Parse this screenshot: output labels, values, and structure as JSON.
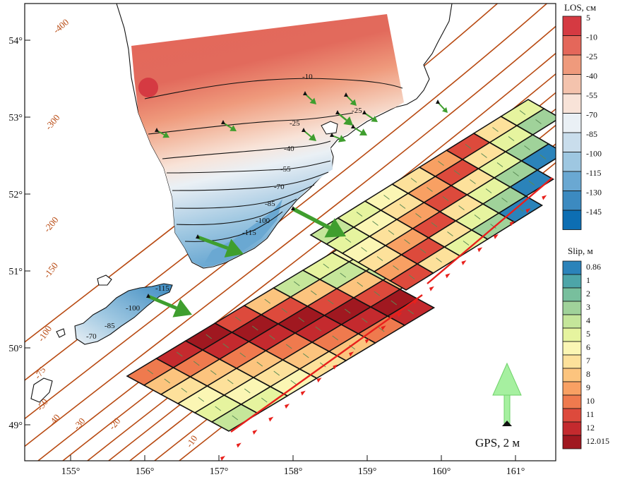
{
  "map": {
    "lon_ticks": [
      {
        "value": 155,
        "label": "155°"
      },
      {
        "value": 156,
        "label": "156°"
      },
      {
        "value": 157,
        "label": "157°"
      },
      {
        "value": 158,
        "label": "158°"
      },
      {
        "value": 159,
        "label": "159°"
      },
      {
        "value": 160,
        "label": "160°"
      },
      {
        "value": 161,
        "label": "161°"
      }
    ],
    "lat_ticks": [
      {
        "value": 49,
        "label": "49°"
      },
      {
        "value": 50,
        "label": "50°"
      },
      {
        "value": 51,
        "label": "51°"
      },
      {
        "value": 52,
        "label": "52°"
      },
      {
        "value": 53,
        "label": "53°"
      },
      {
        "value": 54,
        "label": "54°"
      }
    ],
    "depth_contour_labels": [
      "-400",
      "-300",
      "-200",
      "-150",
      "-100",
      "-75",
      "-50",
      "-40",
      "-30",
      "-20",
      "-10"
    ],
    "los_contour_labels": [
      "-10",
      "-25",
      "-25",
      "-40",
      "-55",
      "-70",
      "-85",
      "-100",
      "-115",
      "-115",
      "-100",
      "-85",
      "-70"
    ]
  },
  "los_legend": {
    "title": "LOS, см",
    "items": [
      {
        "label": "5",
        "color": "#d53a42"
      },
      {
        "label": "-10",
        "color": "#e4675a"
      },
      {
        "label": "-25",
        "color": "#ef9a7c"
      },
      {
        "label": "-40",
        "color": "#f4c3ad"
      },
      {
        "label": "-55",
        "color": "#f8e3d8"
      },
      {
        "label": "-70",
        "color": "#eaf0f5"
      },
      {
        "label": "-85",
        "color": "#c9ddec"
      },
      {
        "label": "-100",
        "color": "#9ec7e1"
      },
      {
        "label": "-115",
        "color": "#6aa8d2"
      },
      {
        "label": "-130",
        "color": "#3c8ac0"
      },
      {
        "label": "-145",
        "color": "#0d6eb3"
      }
    ]
  },
  "slip_legend": {
    "title": "Slip, м",
    "items": [
      {
        "label": "0.86",
        "color": "#2b83ba"
      },
      {
        "label": "1",
        "color": "#4da5a8"
      },
      {
        "label": "2",
        "color": "#78bf9d"
      },
      {
        "label": "3",
        "color": "#a0d29a"
      },
      {
        "label": "4",
        "color": "#c5e69a"
      },
      {
        "label": "5",
        "color": "#e6f49f"
      },
      {
        "label": "6",
        "color": "#fbf6b4"
      },
      {
        "label": "7",
        "color": "#fde19b"
      },
      {
        "label": "8",
        "color": "#fcc47e"
      },
      {
        "label": "9",
        "color": "#f8a063"
      },
      {
        "label": "10",
        "color": "#ef7a4e"
      },
      {
        "label": "11",
        "color": "#dd4a3c"
      },
      {
        "label": "12",
        "color": "#c42a2e"
      },
      {
        "label": "12.015",
        "color": "#a01820"
      }
    ]
  },
  "gps_scale": {
    "label": "GPS, 2 м"
  },
  "colors": {
    "contour": "#b84a12",
    "trench": "#e8201c",
    "gps_arrow": "#3f9e2e",
    "gps_scale_arrow": "#a6f0a0"
  }
}
